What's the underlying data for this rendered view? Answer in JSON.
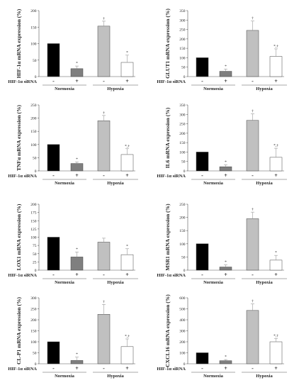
{
  "colors": {
    "normoxia_control": "#000000",
    "normoxia_sirna": "#7f7f7f",
    "hypoxia_control": "#c0c0c0",
    "hypoxia_sirna": "#ffffff",
    "bar_stroke": "#444444"
  },
  "chart_data": [
    {
      "type": "bar",
      "ylabel": "HIF-1α mRNA expression (%)",
      "ylim": [
        0,
        200
      ],
      "yticks": [
        0,
        50,
        100,
        150,
        200
      ],
      "row_label": "HIF-1α siRNA",
      "sirna_labels": [
        "-",
        "+",
        "-",
        "+"
      ],
      "groups": [
        "Normoxia",
        "Hypoxia"
      ],
      "values": [
        100,
        24,
        153,
        43
      ],
      "errors": [
        0,
        8,
        15,
        22
      ],
      "significance": [
        "",
        "*",
        "†",
        "*"
      ]
    },
    {
      "type": "bar",
      "ylabel": "GLUT1 mRNA expression (%)",
      "ylim": [
        0,
        350
      ],
      "yticks": [
        0,
        50,
        100,
        150,
        200,
        250,
        300,
        350
      ],
      "row_label": "HIF-1α siRNA",
      "sirna_labels": [
        "-",
        "+",
        "-",
        "+"
      ],
      "groups": [
        "Normoxia",
        "Hypoxia"
      ],
      "values": [
        100,
        28,
        245,
        107
      ],
      "errors": [
        0,
        12,
        50,
        40
      ],
      "significance": [
        "",
        "*",
        "†",
        "*,†"
      ]
    },
    {
      "type": "bar",
      "ylabel": "TNFα mRNA expression (%)",
      "ylim": [
        0,
        250
      ],
      "yticks": [
        0,
        50,
        100,
        150,
        200,
        250
      ],
      "row_label": "HIF-1α siRNA",
      "sirna_labels": [
        "-",
        "+",
        "-",
        "+"
      ],
      "groups": [
        "Normoxia",
        "Hypoxia"
      ],
      "values": [
        100,
        28,
        190,
        62
      ],
      "errors": [
        0,
        6,
        20,
        22
      ],
      "significance": [
        "",
        "*",
        "†",
        "*,†"
      ]
    },
    {
      "type": "bar",
      "ylabel": "IL6 mRNA expression (%)",
      "ylim": [
        0,
        350
      ],
      "yticks": [
        0,
        50,
        100,
        150,
        200,
        250,
        300,
        350
      ],
      "row_label": "HIF-1α siRNA",
      "sirna_labels": [
        "-",
        "+",
        "-",
        "+"
      ],
      "groups": [
        "Normoxia",
        "Hypoxia"
      ],
      "values": [
        100,
        22,
        268,
        72
      ],
      "errors": [
        0,
        10,
        35,
        48
      ],
      "significance": [
        "",
        "*",
        "†",
        "*,†"
      ]
    },
    {
      "type": "bar",
      "ylabel": "LOX1 mRNA expression (%)",
      "ylim": [
        0,
        200
      ],
      "yticks": [
        0,
        25,
        50,
        75,
        100,
        125,
        150,
        175,
        200
      ],
      "row_label": "HIF-1α siRNA",
      "sirna_labels": [
        "-",
        "+",
        "-",
        "+"
      ],
      "groups": [
        "Normoxia",
        "Hypoxia"
      ],
      "values": [
        100,
        40,
        85,
        47
      ],
      "errors": [
        0,
        15,
        12,
        18
      ],
      "significance": [
        "",
        "*",
        "",
        "*"
      ]
    },
    {
      "type": "bar",
      "ylabel": "MSR1 mRNA expression (%)",
      "ylim": [
        0,
        250
      ],
      "yticks": [
        0,
        50,
        100,
        150,
        200,
        250
      ],
      "row_label": "HIF-1α siRNA",
      "sirna_labels": [
        "-",
        "+",
        "-",
        "+"
      ],
      "groups": [
        "Normoxia",
        "Hypoxia"
      ],
      "values": [
        100,
        12,
        195,
        38
      ],
      "errors": [
        0,
        8,
        25,
        18
      ],
      "significance": [
        "",
        "*",
        "†",
        "*"
      ]
    },
    {
      "type": "bar",
      "ylabel": "CL-P1 mRNA expression (%)",
      "ylim": [
        0,
        300
      ],
      "yticks": [
        0,
        50,
        100,
        150,
        200,
        250,
        300
      ],
      "row_label": "HIF-1α siRNA",
      "sirna_labels": [
        "-",
        "+",
        "-",
        "+"
      ],
      "groups": [
        "Normoxia",
        "Hypoxia"
      ],
      "values": [
        100,
        15,
        225,
        78
      ],
      "errors": [
        0,
        15,
        45,
        35
      ],
      "significance": [
        "",
        "*",
        "†",
        "*,†"
      ]
    },
    {
      "type": "bar",
      "ylabel": "CXCL16 mRNA expression (%)",
      "ylim": [
        0,
        600
      ],
      "yticks": [
        0,
        100,
        200,
        300,
        400,
        500,
        600
      ],
      "row_label": "HIF-1α siRNA",
      "sirna_labels": [
        "-",
        "+",
        "-",
        "+"
      ],
      "groups": [
        "Normoxia",
        "Hypoxia"
      ],
      "values": [
        100,
        28,
        485,
        200
      ],
      "errors": [
        0,
        10,
        60,
        30
      ],
      "significance": [
        "",
        "*",
        "†",
        "*,†"
      ]
    }
  ]
}
